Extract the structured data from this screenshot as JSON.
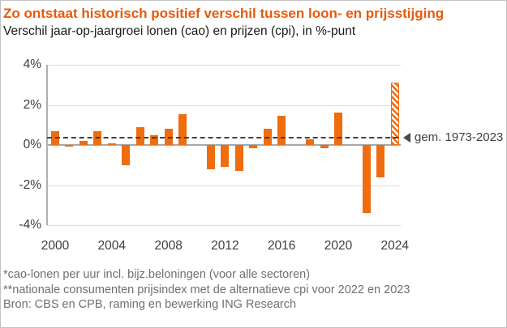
{
  "header": {
    "title": "Zo ontstaat historisch positief verschil tussen loon- en prijsstijging",
    "subtitle": "Verschil jaar-op-jaargroei lonen (cao) en prijzen (cpi), in %-punt"
  },
  "chart_data": {
    "type": "bar",
    "categories": [
      2000,
      2001,
      2002,
      2003,
      2004,
      2005,
      2006,
      2007,
      2008,
      2009,
      2010,
      2011,
      2012,
      2013,
      2014,
      2015,
      2016,
      2017,
      2018,
      2019,
      2020,
      2021,
      2022,
      2023,
      2024
    ],
    "values": [
      0.7,
      -0.1,
      0.2,
      0.7,
      0.1,
      -1.0,
      0.9,
      0.5,
      0.8,
      1.55,
      0.0,
      -1.2,
      -1.1,
      -1.3,
      -0.15,
      0.8,
      1.45,
      0.0,
      0.3,
      -0.15,
      1.6,
      0.0,
      -3.4,
      -1.6,
      3.1
    ],
    "hatched_categories": [
      2024
    ],
    "ylim": [
      -4,
      4
    ],
    "yticks": [
      {
        "value": 4,
        "label": "4%"
      },
      {
        "value": 2,
        "label": "2%"
      },
      {
        "value": 0,
        "label": "0%"
      },
      {
        "value": -2,
        "label": "-2%"
      },
      {
        "value": -4,
        "label": "-4%"
      }
    ],
    "xticks": [
      2000,
      2004,
      2008,
      2012,
      2016,
      2020,
      2024
    ],
    "average_line": {
      "value": 0.35,
      "label": "gem. 1973-2023"
    },
    "grid": true,
    "legend": "none"
  },
  "colors": {
    "title": "#e8590c",
    "bar": "#ef6c0f",
    "average_line": "#3f3f3f",
    "gridline": "#dcdcdc",
    "zero_line": "#a8a8a8",
    "axis_text": "#3d3d3d",
    "footnote_text": "#6f6f6f"
  },
  "footnotes": [
    "*cao-lonen per uur incl. bijz.beloningen (voor alle sectoren)",
    "**nationale consumenten prijsindex met de alternatieve cpi voor 2022 en 2023",
    "Bron: CBS en CPB, raming en bewerking ING Research"
  ]
}
